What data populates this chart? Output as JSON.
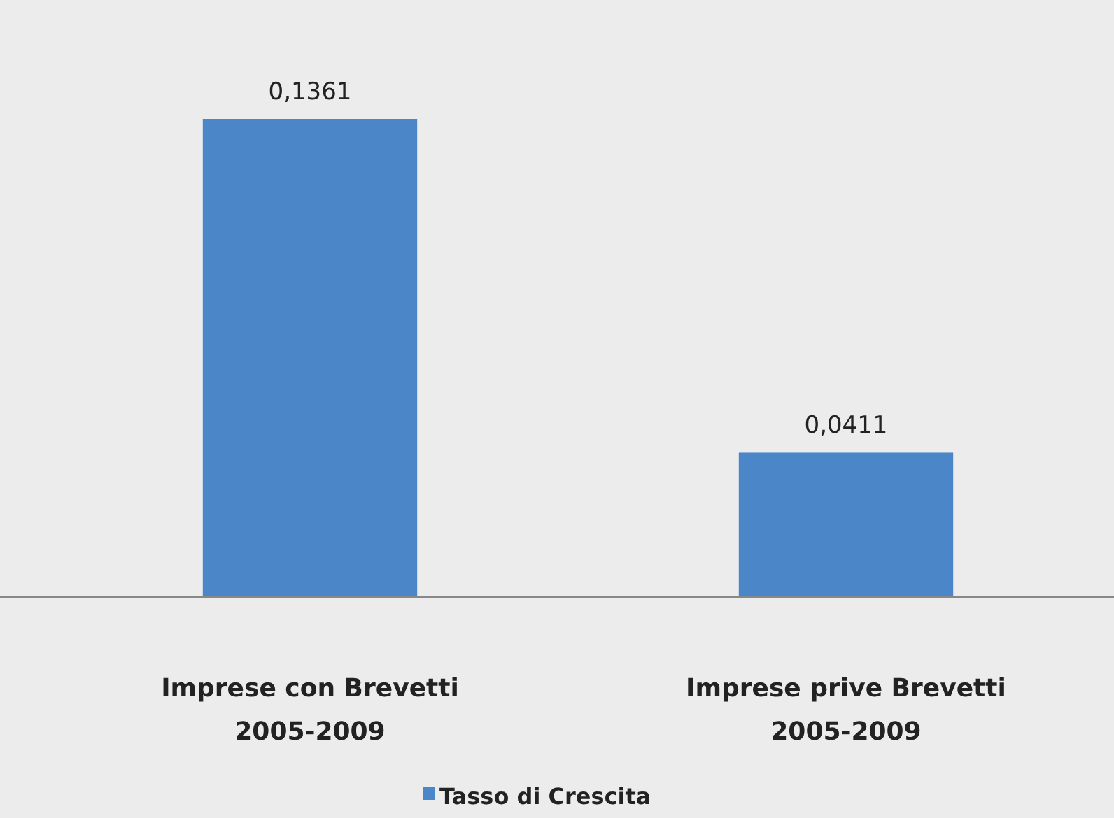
{
  "chart_data": {
    "type": "bar",
    "categories": [
      "Imprese con Brevetti 2005-2009",
      "Imprese prive Brevetti 2005-2009"
    ],
    "series": [
      {
        "name": "Tasso di Crescita",
        "color": "#4a86c8",
        "values": [
          0.1361,
          0.0411
        ],
        "value_labels": [
          "0,1361",
          "0,0411"
        ]
      }
    ],
    "legend": "bottom"
  }
}
